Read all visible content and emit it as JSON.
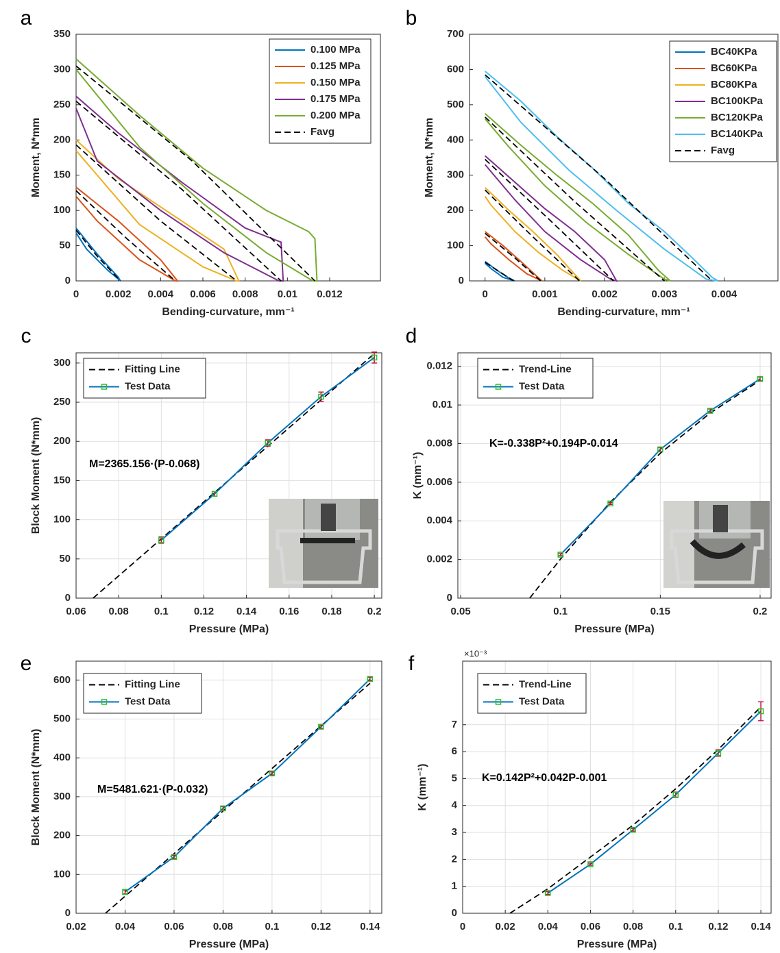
{
  "chart_data": [
    {
      "type": "line",
      "panel_label": "a",
      "xlabel": "Bending-curvature, mm⁻¹",
      "ylabel": "Moment, N*mm",
      "xlim": [
        0,
        0.0144
      ],
      "ylim": [
        0,
        350
      ],
      "xticks": [
        0,
        0.002,
        0.004,
        0.006,
        0.008,
        0.01,
        0.012
      ],
      "yticks": [
        0,
        50,
        100,
        150,
        200,
        250,
        300,
        350
      ],
      "grid": false,
      "legend": "upper right",
      "series": [
        {
          "name": "0.100 MPa",
          "color": "#0072bd",
          "x": [
            0,
            0.001,
            0.002,
            0.0021,
            0.0015,
            0.0005,
            0
          ],
          "values": [
            75,
            38,
            5,
            0,
            15,
            45,
            68
          ]
        },
        {
          "name": "0.125 MPa",
          "color": "#d95319",
          "x": [
            0,
            0.002,
            0.004,
            0.0048,
            0.0047,
            0.003,
            0.001,
            0
          ],
          "values": [
            133,
            85,
            30,
            0,
            0,
            30,
            85,
            120
          ]
        },
        {
          "name": "0.150 MPa",
          "color": "#edb120",
          "x": [
            0,
            0.002,
            0.005,
            0.007,
            0.0077,
            0.0076,
            0.006,
            0.003,
            0
          ],
          "values": [
            200,
            145,
            85,
            45,
            0,
            0,
            20,
            80,
            185
          ]
        },
        {
          "name": "0.175 MPa",
          "color": "#7e2f8e",
          "x": [
            0,
            0.002,
            0.005,
            0.008,
            0.0097,
            0.0098,
            0.0096,
            0.007,
            0.004,
            0.001,
            0
          ],
          "values": [
            262,
            210,
            140,
            75,
            55,
            0,
            0,
            40,
            100,
            170,
            245
          ]
        },
        {
          "name": "0.200 MPa",
          "color": "#77ac30",
          "x": [
            0,
            0.003,
            0.006,
            0.009,
            0.011,
            0.0113,
            0.0114,
            0.0112,
            0.009,
            0.006,
            0.003,
            0
          ],
          "values": [
            315,
            235,
            160,
            100,
            70,
            60,
            0,
            0,
            40,
            110,
            190,
            300
          ]
        },
        {
          "name": "Favg",
          "color": "#000000",
          "dash": true,
          "x": [
            0,
            0.001,
            0.0021,
            null,
            0,
            0.0024,
            0.0047,
            null,
            0,
            0.004,
            0.0076,
            null,
            0,
            0.005,
            0.0097,
            null,
            0,
            0.0055,
            0.0113
          ],
          "values": [
            72,
            35,
            0,
            null,
            128,
            60,
            0,
            null,
            193,
            85,
            0,
            null,
            255,
            130,
            0,
            null,
            305,
            170,
            0
          ]
        }
      ]
    },
    {
      "type": "line",
      "panel_label": "b",
      "xlabel": "Bending-curvature, mm⁻¹",
      "ylabel": "Moment, N*mm",
      "xlim": [
        -0.00026,
        0.0049
      ],
      "ylim": [
        0,
        700
      ],
      "xticks": [
        0,
        0.001,
        0.002,
        0.003,
        0.004
      ],
      "yticks": [
        0,
        100,
        200,
        300,
        400,
        500,
        600,
        700
      ],
      "grid": false,
      "legend": "upper right",
      "series": [
        {
          "name": "BC40KPa",
          "color": "#0072bd",
          "x": [
            0,
            0.0002,
            0.0004,
            0.0005,
            0.0003,
            0.0001,
            0
          ],
          "values": [
            55,
            30,
            8,
            0,
            10,
            35,
            50
          ]
        },
        {
          "name": "BC60KPa",
          "color": "#d95319",
          "x": [
            0,
            0.0003,
            0.0006,
            0.00095,
            0.0007,
            0.0004,
            0.0001,
            0
          ],
          "values": [
            140,
            100,
            55,
            0,
            20,
            60,
            105,
            125
          ]
        },
        {
          "name": "BC80KPa",
          "color": "#edb120",
          "x": [
            0,
            0.0004,
            0.0008,
            0.0012,
            0.0016,
            0.0013,
            0.0009,
            0.0005,
            0.0001,
            0
          ],
          "values": [
            265,
            200,
            140,
            75,
            0,
            30,
            80,
            140,
            215,
            240
          ]
        },
        {
          "name": "BC100KPa",
          "color": "#7e2f8e",
          "x": [
            0,
            0.0005,
            0.001,
            0.0015,
            0.002,
            0.0022,
            0.0021,
            0.0016,
            0.001,
            0.0005,
            0
          ],
          "values": [
            355,
            280,
            205,
            140,
            60,
            0,
            5,
            60,
            140,
            230,
            330
          ]
        },
        {
          "name": "BC120KPa",
          "color": "#77ac30",
          "x": [
            0,
            0.0006,
            0.0012,
            0.0018,
            0.0024,
            0.0029,
            0.0031,
            0.003,
            0.0024,
            0.0017,
            0.001,
            0.0004,
            0
          ],
          "values": [
            475,
            385,
            300,
            220,
            130,
            30,
            0,
            5,
            75,
            165,
            270,
            380,
            460
          ]
        },
        {
          "name": "BC140KPa",
          "color": "#4dbeee",
          "x": [
            0,
            0.0006,
            0.0012,
            0.0018,
            0.0024,
            0.003,
            0.0035,
            0.0038,
            0.0039,
            0.0037,
            0.003,
            0.0022,
            0.0014,
            0.0006,
            0
          ],
          "values": [
            595,
            510,
            410,
            320,
            220,
            140,
            60,
            10,
            0,
            5,
            90,
            200,
            315,
            450,
            580
          ]
        },
        {
          "name": "Favg",
          "color": "#000000",
          "dash": true,
          "x": [
            0,
            0.00025,
            0.00048,
            null,
            0,
            0.0005,
            0.00093,
            null,
            0,
            0.0008,
            0.00158,
            null,
            0,
            0.0011,
            0.00215,
            null,
            0,
            0.0015,
            0.003,
            null,
            0,
            0.002,
            0.0038
          ],
          "values": [
            53,
            25,
            0,
            null,
            135,
            65,
            0,
            null,
            258,
            125,
            0,
            null,
            345,
            170,
            0,
            null,
            465,
            225,
            0,
            null,
            585,
            290,
            0
          ]
        }
      ]
    },
    {
      "type": "line",
      "panel_label": "c",
      "xlabel": "Pressure (MPa)",
      "ylabel": "Block Moment (N*mm)",
      "annotation": "M=2365.156·(P-0.068)",
      "xlim": [
        0.06,
        0.2035
      ],
      "ylim": [
        0,
        313
      ],
      "xticks": [
        0.06,
        0.08,
        0.1,
        0.12,
        0.14,
        0.16,
        0.18,
        0.2
      ],
      "yticks": [
        0,
        50,
        100,
        150,
        200,
        250,
        300
      ],
      "grid": true,
      "legend": "upper left",
      "series": [
        {
          "name": "Fitting Line",
          "color": "#000000",
          "dash": true,
          "x": [
            0.068,
            0.2
          ],
          "values": [
            0,
            312
          ]
        },
        {
          "name": "Test Data",
          "color": "#0072bd",
          "marker": "square",
          "marker_color": "#2cbf2c",
          "error_color": "#c0143c",
          "x": [
            0.1,
            0.125,
            0.15,
            0.175,
            0.2
          ],
          "values": [
            74,
            133,
            198,
            257,
            307
          ],
          "errors": [
            4,
            3,
            4,
            6,
            7
          ]
        }
      ]
    },
    {
      "type": "line",
      "panel_label": "d",
      "xlabel": "Pressure (MPa)",
      "ylabel": "K (mm⁻¹)",
      "annotation": "K=-0.338P²+0.194P-0.014",
      "xlim": [
        0.0486,
        0.2055
      ],
      "ylim": [
        0,
        0.0127
      ],
      "xticks": [
        0.05,
        0.1,
        0.15,
        0.2
      ],
      "yticks": [
        0,
        0.002,
        0.004,
        0.006,
        0.008,
        0.01,
        0.012
      ],
      "grid": true,
      "legend": "upper left",
      "series": [
        {
          "name": "Trend-Line",
          "color": "#000000",
          "dash": true,
          "x": [
            0.0846,
            0.1,
            0.125,
            0.15,
            0.175,
            0.2
          ],
          "values": [
            0,
            0.00202,
            0.00497,
            0.0075,
            0.00958,
            0.01128
          ]
        },
        {
          "name": "Test Data",
          "color": "#0072bd",
          "marker": "square",
          "marker_color": "#2cbf2c",
          "error_color": "#c0143c",
          "x": [
            0.1,
            0.125,
            0.15,
            0.175,
            0.2
          ],
          "values": [
            0.00225,
            0.0049,
            0.0077,
            0.0097,
            0.01135
          ],
          "errors": [
            5e-05,
            5e-05,
            0.0001,
            0.0001,
            0.0001
          ]
        }
      ]
    },
    {
      "type": "line",
      "panel_label": "e",
      "xlabel": "Pressure (MPa)",
      "ylabel": "Block Moment (N*mm)",
      "annotation": "M=5481.621·(P-0.032)",
      "xlim": [
        0.02,
        0.1448
      ],
      "ylim": [
        0,
        649
      ],
      "xticks": [
        0.02,
        0.04,
        0.06,
        0.08,
        0.1,
        0.12,
        0.14
      ],
      "yticks": [
        0,
        100,
        200,
        300,
        400,
        500,
        600
      ],
      "grid": true,
      "legend": "upper left",
      "series": [
        {
          "name": "Fitting Line",
          "color": "#000000",
          "dash": true,
          "x": [
            0.032,
            0.14
          ],
          "values": [
            0,
            592
          ]
        },
        {
          "name": "Test Data",
          "color": "#0072bd",
          "marker": "square",
          "marker_color": "#2cbf2c",
          "error_color": "#c0143c",
          "x": [
            0.04,
            0.06,
            0.08,
            0.1,
            0.12,
            0.14
          ],
          "values": [
            55,
            145,
            270,
            360,
            480,
            603
          ],
          "errors": [
            5,
            4,
            5,
            4,
            4,
            4
          ]
        }
      ]
    },
    {
      "type": "line",
      "panel_label": "f",
      "xlabel": "Pressure (MPa)",
      "ylabel": "K (mm⁻¹)",
      "annotation": "K=0.142P²+0.042P-0.001",
      "y_multiplier": "×10⁻³",
      "xlim": [
        0,
        0.1448
      ],
      "ylim": [
        0,
        9.36
      ],
      "xticks": [
        0,
        0.02,
        0.04,
        0.06,
        0.08,
        0.1,
        0.12,
        0.14
      ],
      "yticks": [
        0,
        1,
        2,
        3,
        4,
        5,
        6,
        7
      ],
      "grid": true,
      "legend": "upper left",
      "series": [
        {
          "name": "Trend-Line",
          "color": "#000000",
          "dash": true,
          "x": [
            0.0222,
            0.04,
            0.08,
            0.1,
            0.12,
            0.14
          ],
          "values": [
            0,
            0.907,
            3.27,
            4.62,
            6.08,
            7.66
          ]
        },
        {
          "name": "Test Data",
          "color": "#0072bd",
          "marker": "square",
          "marker_color": "#2cbf2c",
          "error_color": "#c0143c",
          "x": [
            0.04,
            0.06,
            0.08,
            0.1,
            0.12,
            0.14
          ],
          "values": [
            0.75,
            1.82,
            3.1,
            4.4,
            5.95,
            7.5
          ],
          "errors": [
            0.05,
            0.04,
            0.05,
            0.1,
            0.12,
            0.35
          ]
        }
      ]
    }
  ]
}
